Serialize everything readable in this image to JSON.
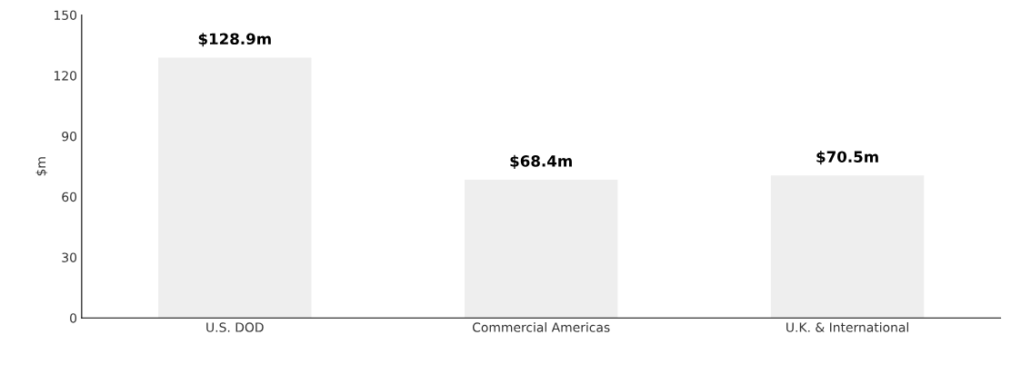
{
  "chart_data": {
    "type": "bar",
    "ylabel": "$m",
    "categories": [
      "U.S. DOD",
      "Commercial Americas",
      "U.K. & International"
    ],
    "values": [
      128.9,
      68.4,
      70.5
    ],
    "value_labels": [
      "$128.9m",
      "$68.4m",
      "$70.5m"
    ],
    "color": "#eeeeee",
    "ylim": [
      0,
      150
    ],
    "yticks": [
      0,
      30,
      60,
      90,
      120,
      150
    ],
    "grid": false
  }
}
